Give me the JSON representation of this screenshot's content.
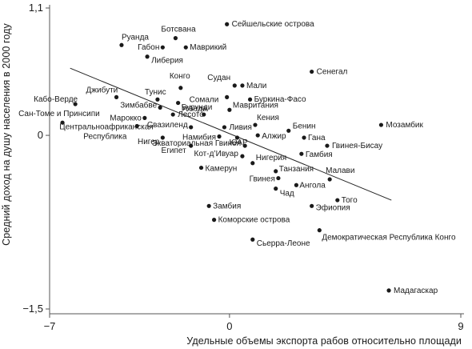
{
  "chart_data": {
    "type": "scatter",
    "title": "",
    "xlabel": "Удельные объемы экспорта рабов относительно площади",
    "ylabel": "Средний доход на душу населения в 2000 году",
    "xlim": [
      -7,
      9
    ],
    "ylim": [
      -1.5,
      1.1
    ],
    "xticks": [
      -7,
      0,
      9
    ],
    "yticks": [
      1.1,
      0,
      -1.5
    ],
    "x_tick_labels": [
      "−7",
      "0",
      "9"
    ],
    "y_tick_labels": [
      "1,1",
      "0",
      "−1,5"
    ],
    "grid": false,
    "trend_line": {
      "x": [
        -6.2,
        6.3
      ],
      "y": [
        0.58,
        -0.56
      ]
    },
    "points": [
      {
        "label": "Сейшельские острова",
        "x": -0.1,
        "y": 0.96
      },
      {
        "label": "Ботсвана",
        "x": -2.1,
        "y": 0.84
      },
      {
        "label": "Руанда",
        "x": -4.2,
        "y": 0.78
      },
      {
        "label": "Габон",
        "x": -2.6,
        "y": 0.76
      },
      {
        "label": "Маврикий",
        "x": -1.7,
        "y": 0.76
      },
      {
        "label": "Либерия",
        "x": -3.2,
        "y": 0.68
      },
      {
        "label": "Сенегал",
        "x": 3.2,
        "y": 0.55
      },
      {
        "label": "Судан",
        "x": 0.2,
        "y": 0.43
      },
      {
        "label": "Мали",
        "x": 0.5,
        "y": 0.43
      },
      {
        "label": "Конго",
        "x": -1.9,
        "y": 0.41
      },
      {
        "label": "Джибути",
        "x": -4.4,
        "y": 0.33
      },
      {
        "label": "Тунис",
        "x": -2.8,
        "y": 0.31
      },
      {
        "label": "Сомали",
        "x": -0.1,
        "y": 0.33
      },
      {
        "label": "Буркина-Фасо",
        "x": 0.8,
        "y": 0.31
      },
      {
        "label": "Кабо-Верде",
        "x": -6.0,
        "y": 0.27
      },
      {
        "label": "Уганда",
        "x": -2.0,
        "y": 0.28
      },
      {
        "label": "Зимбабве",
        "x": -2.7,
        "y": 0.24
      },
      {
        "label": "Мавритания",
        "x": 0.0,
        "y": 0.22
      },
      {
        "label": "Лесото",
        "x": -2.2,
        "y": 0.18
      },
      {
        "label": "Бурунди",
        "x": -1.0,
        "y": 0.18
      },
      {
        "label": "Марокко",
        "x": -3.3,
        "y": 0.15
      },
      {
        "label": "Сан-Томе и Принсипи",
        "x": -6.5,
        "y": 0.11
      },
      {
        "label": "Центральноафриканская Республика",
        "x": -3.6,
        "y": 0.08
      },
      {
        "label": "Мозамбик",
        "x": 5.9,
        "y": 0.09
      },
      {
        "label": "Кения",
        "x": 1.0,
        "y": 0.09
      },
      {
        "label": "Ливия",
        "x": -0.2,
        "y": 0.07
      },
      {
        "label": "Свазиленд",
        "x": -1.5,
        "y": 0.07
      },
      {
        "label": "Бенин",
        "x": 2.3,
        "y": 0.04
      },
      {
        "label": "Алжир",
        "x": 1.1,
        "y": 0.0
      },
      {
        "label": "Намибия",
        "x": -0.4,
        "y": -0.01
      },
      {
        "label": "Нигер",
        "x": -2.6,
        "y": -0.02
      },
      {
        "label": "ЮАР",
        "x": 0.3,
        "y": -0.02
      },
      {
        "label": "Гана",
        "x": 2.9,
        "y": -0.02
      },
      {
        "label": "Египет",
        "x": -1.5,
        "y": -0.09
      },
      {
        "label": "Экваториальная Гвинея",
        "x": 0.6,
        "y": -0.09
      },
      {
        "label": "Гвинея-Бисау",
        "x": 3.8,
        "y": -0.09
      },
      {
        "label": "Гамбия",
        "x": 2.8,
        "y": -0.16
      },
      {
        "label": "Кот-д’Ивуар",
        "x": 0.5,
        "y": -0.18
      },
      {
        "label": "Нигерия",
        "x": 0.9,
        "y": -0.24
      },
      {
        "label": "Камерун",
        "x": -1.1,
        "y": -0.28
      },
      {
        "label": "Танзания",
        "x": 1.8,
        "y": -0.31
      },
      {
        "label": "Малави",
        "x": 3.9,
        "y": -0.38
      },
      {
        "label": "Гвинея",
        "x": 1.9,
        "y": -0.37
      },
      {
        "label": "Ангола",
        "x": 2.6,
        "y": -0.43
      },
      {
        "label": "Чад",
        "x": 1.8,
        "y": -0.46
      },
      {
        "label": "Того",
        "x": 4.2,
        "y": -0.56
      },
      {
        "label": "Замбия",
        "x": -0.8,
        "y": -0.61
      },
      {
        "label": "Эфиопия",
        "x": 3.2,
        "y": -0.61
      },
      {
        "label": "Коморские острова",
        "x": -0.6,
        "y": -0.73
      },
      {
        "label": "Демократическая Республика Конго",
        "x": 3.5,
        "y": -0.82
      },
      {
        "label": "Сьерра-Леоне",
        "x": 0.9,
        "y": -0.9
      },
      {
        "label": "Мадагаскар",
        "x": 6.2,
        "y": -1.34
      }
    ]
  }
}
